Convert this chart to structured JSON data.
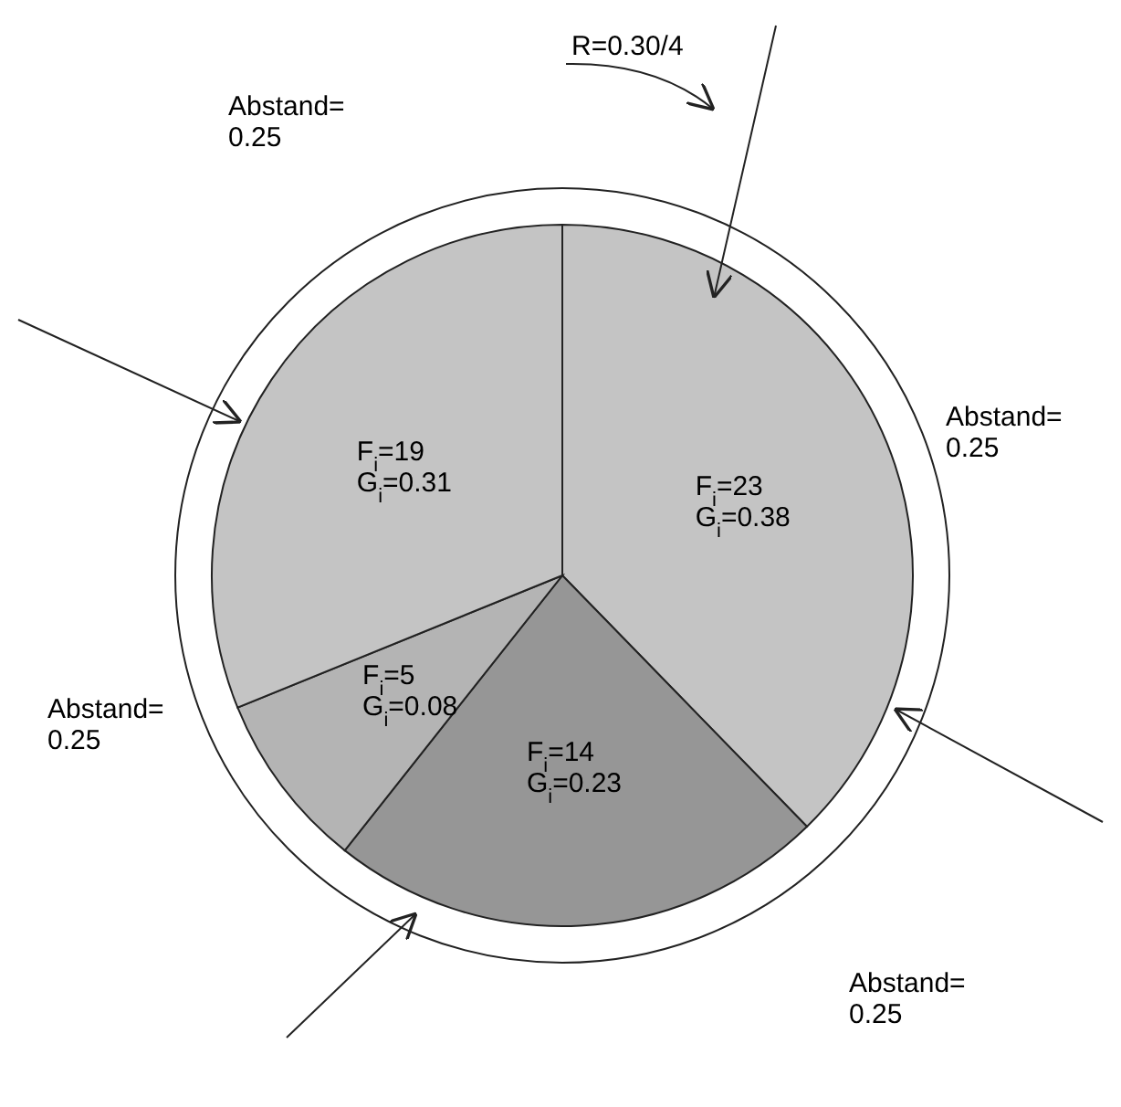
{
  "chart_data": {
    "type": "pie",
    "categories": [
      null,
      null,
      null,
      null
    ],
    "values": [
      23,
      14,
      5,
      19
    ],
    "colors": [
      "#c4c4c4",
      "#969696",
      "#b4b4b4",
      "#c4c4c4"
    ],
    "value_labels": [
      "F$_{i}$=23\nG$_{i}$=0.38",
      "F$_{i}$=14\nG$_{i}$=0.23",
      "F$_{i}$=5\nG$_{i}$=0.08",
      "F$_{i}$=19\nG$_{i}$=0.31"
    ],
    "annotations": [
      "R=0.30/4",
      "Abstand=\n0.25",
      "Abstand=\n0.25",
      "Abstand=\n0.25",
      "Abstand=\n0.25"
    ]
  }
}
